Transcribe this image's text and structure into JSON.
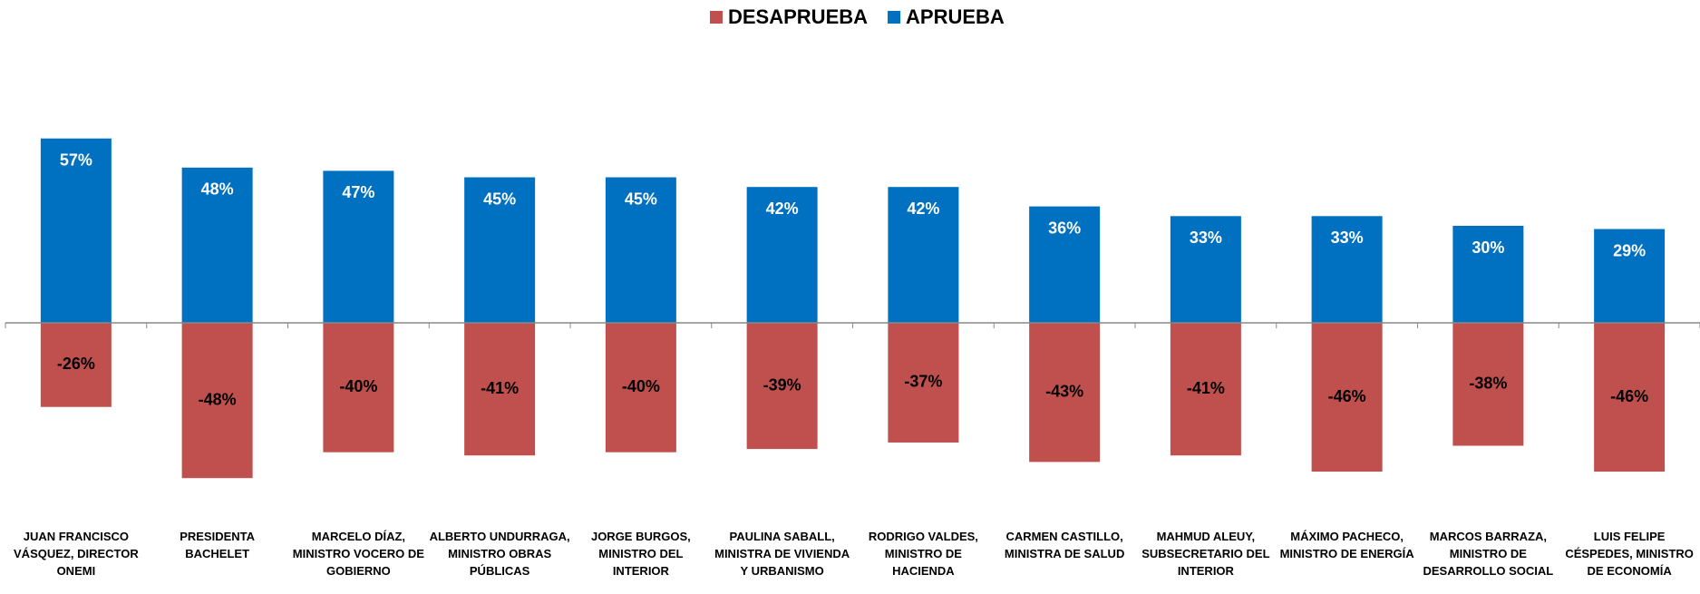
{
  "chart_data": {
    "type": "bar",
    "categories": [
      "JUAN FRANCISCO VÁSQUEZ, DIRECTOR ONEMI",
      "PRESIDENTA BACHELET",
      "MARCELO DÍAZ, MINISTRO VOCERO DE GOBIERNO",
      "ALBERTO UNDURRAGA, MINISTRO OBRAS PÚBLICAS",
      "JORGE BURGOS, MINISTRO DEL INTERIOR",
      "PAULINA SABALL, MINISTRA DE VIVIENDA Y URBANISMO",
      "RODRIGO VALDES, MINISTRO DE HACIENDA",
      "CARMEN CASTILLO, MINISTRA DE SALUD",
      "MAHMUD ALEUY, SUBSECRETARIO DEL INTERIOR",
      "MÁXIMO PACHECO, MINISTRO DE ENERGÍA",
      "MARCOS BARRAZA, MINISTRO DE DESARROLLO SOCIAL",
      "LUIS FELIPE CÉSPEDES, MINISTRO DE ECONOMÍA"
    ],
    "series": [
      {
        "name": "DESAPRUEBA",
        "color": "#c0504d",
        "values": [
          -26,
          -48,
          -40,
          -41,
          -40,
          -39,
          -37,
          -43,
          -41,
          -46,
          -38,
          -46
        ],
        "value_labels": [
          "-26%",
          "-48%",
          "-40%",
          "-41%",
          "-40%",
          "-39%",
          "-37%",
          "-43%",
          "-41%",
          "-46%",
          "-38%",
          "-46%"
        ]
      },
      {
        "name": "APRUEBA",
        "color": "#0070c0",
        "values": [
          57,
          48,
          47,
          45,
          45,
          42,
          42,
          36,
          33,
          33,
          30,
          29
        ],
        "value_labels": [
          "57%",
          "48%",
          "47%",
          "45%",
          "45%",
          "42%",
          "42%",
          "36%",
          "33%",
          "33%",
          "30%",
          "29%"
        ]
      }
    ],
    "ylim": [
      -60,
      60
    ],
    "legend": "top"
  }
}
